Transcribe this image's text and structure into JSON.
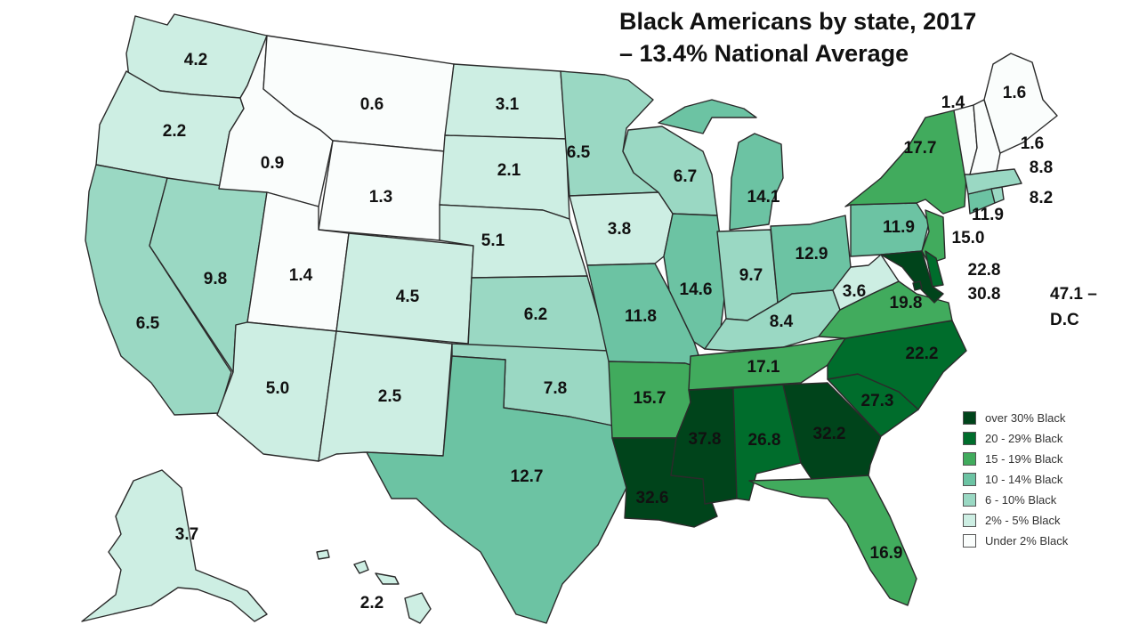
{
  "title": {
    "line1": "Black Americans by state, 2017",
    "line2": "– 13.4% National Average"
  },
  "colors": {
    "over30": "#00441b",
    "20to29": "#006d2c",
    "15to19": "#41ab5d",
    "10to14": "#6cc3a3",
    "6to10": "#9ad8c3",
    "2to5": "#cdeee3",
    "under2": "#fafdfc"
  },
  "legend": [
    {
      "label": "over 30% Black",
      "color": "#00441b"
    },
    {
      "label": "20 - 29% Black",
      "color": "#006d2c"
    },
    {
      "label": "15 - 19% Black",
      "color": "#41ab5d"
    },
    {
      "label": "10 - 14% Black",
      "color": "#6cc3a3"
    },
    {
      "label": "6 - 10% Black",
      "color": "#9ad8c3"
    },
    {
      "label": "2% - 5% Black",
      "color": "#cdeee3"
    },
    {
      "label": "Under 2% Black",
      "color": "#fafdfc"
    }
  ],
  "dc_label": {
    "line1": "47.1 –",
    "line2": "D.C"
  },
  "states": {
    "WA": "4.2",
    "OR": "2.2",
    "CA": "6.5",
    "NV": "9.8",
    "ID": "0.9",
    "MT": "0.6",
    "WY": "1.3",
    "UT": "1.4",
    "AZ": "5.0",
    "CO": "4.5",
    "NM": "2.5",
    "ND": "3.1",
    "SD": "2.1",
    "NE": "5.1",
    "KS": "6.2",
    "OK": "7.8",
    "TX": "12.7",
    "MN": "6.5",
    "IA": "3.8",
    "MO": "11.8",
    "AR": "15.7",
    "LA": "32.6",
    "WI": "6.7",
    "IL": "14.6",
    "MI": "14.1",
    "IN": "9.7",
    "OH": "12.9",
    "KY": "8.4",
    "TN": "17.1",
    "MS": "37.8",
    "AL": "26.8",
    "GA": "32.2",
    "FL": "16.9",
    "SC": "27.3",
    "NC": "22.2",
    "VA": "19.8",
    "WV": "3.6",
    "PA": "11.9",
    "NY": "17.7",
    "NJ": "15.0",
    "DE": "22.8",
    "MD": "30.8",
    "CT": "11.9",
    "RI": "8.2",
    "MA": "8.8",
    "VT": "1.4",
    "NH": "1.6",
    "ME": "1.6",
    "AK": "3.7",
    "HI": "2.2"
  }
}
